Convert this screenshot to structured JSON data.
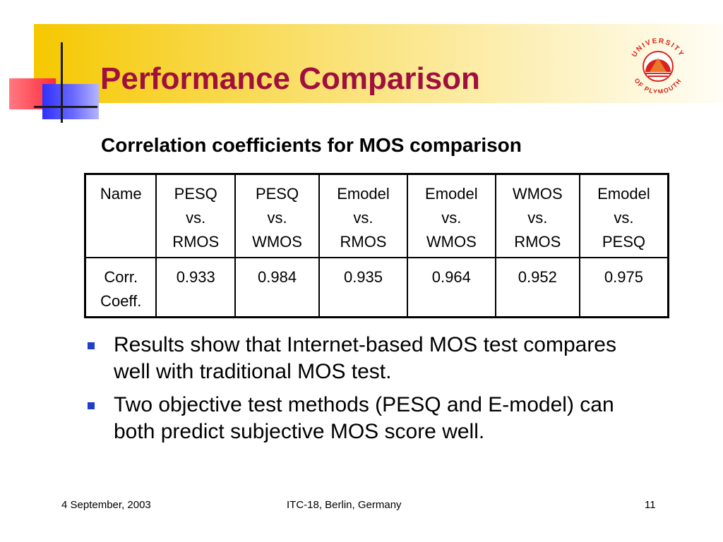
{
  "slide": {
    "title": "Performance Comparison",
    "subtitle": "Correlation coefficients for MOS comparison"
  },
  "logo": {
    "text_top": "UNIVERSITY",
    "text_bottom": "OF PLYMOUTH",
    "colors": {
      "red": "#d8231c",
      "orange": "#e8792a"
    }
  },
  "table": {
    "header": [
      [
        "Name"
      ],
      [
        "PESQ",
        "vs.",
        "RMOS"
      ],
      [
        "PESQ",
        "vs.",
        "WMOS"
      ],
      [
        "Emodel",
        "vs.",
        "RMOS"
      ],
      [
        "Emodel",
        "vs.",
        "WMOS"
      ],
      [
        "WMOS",
        "vs.",
        "RMOS"
      ],
      [
        "Emodel",
        "vs.",
        "PESQ"
      ]
    ],
    "row_label": [
      "Corr.",
      "Coeff."
    ],
    "values": [
      "0.933",
      "0.984",
      "0.935",
      "0.964",
      "0.952",
      "0.975"
    ]
  },
  "bullets": [
    {
      "lines": [
        "Results show that Internet-based MOS test compares",
        "well with traditional MOS test."
      ]
    },
    {
      "lines": [
        "Two objective test methods (PESQ and E-model) can",
        "both predict subjective MOS score well."
      ]
    }
  ],
  "footer": {
    "date": "4 September, 2003",
    "event": "ITC-18, Berlin, Germany",
    "page": "11"
  },
  "colors": {
    "title": "#a0103e",
    "bullet": "#1f3fc8",
    "header_band": "#f5c800"
  }
}
